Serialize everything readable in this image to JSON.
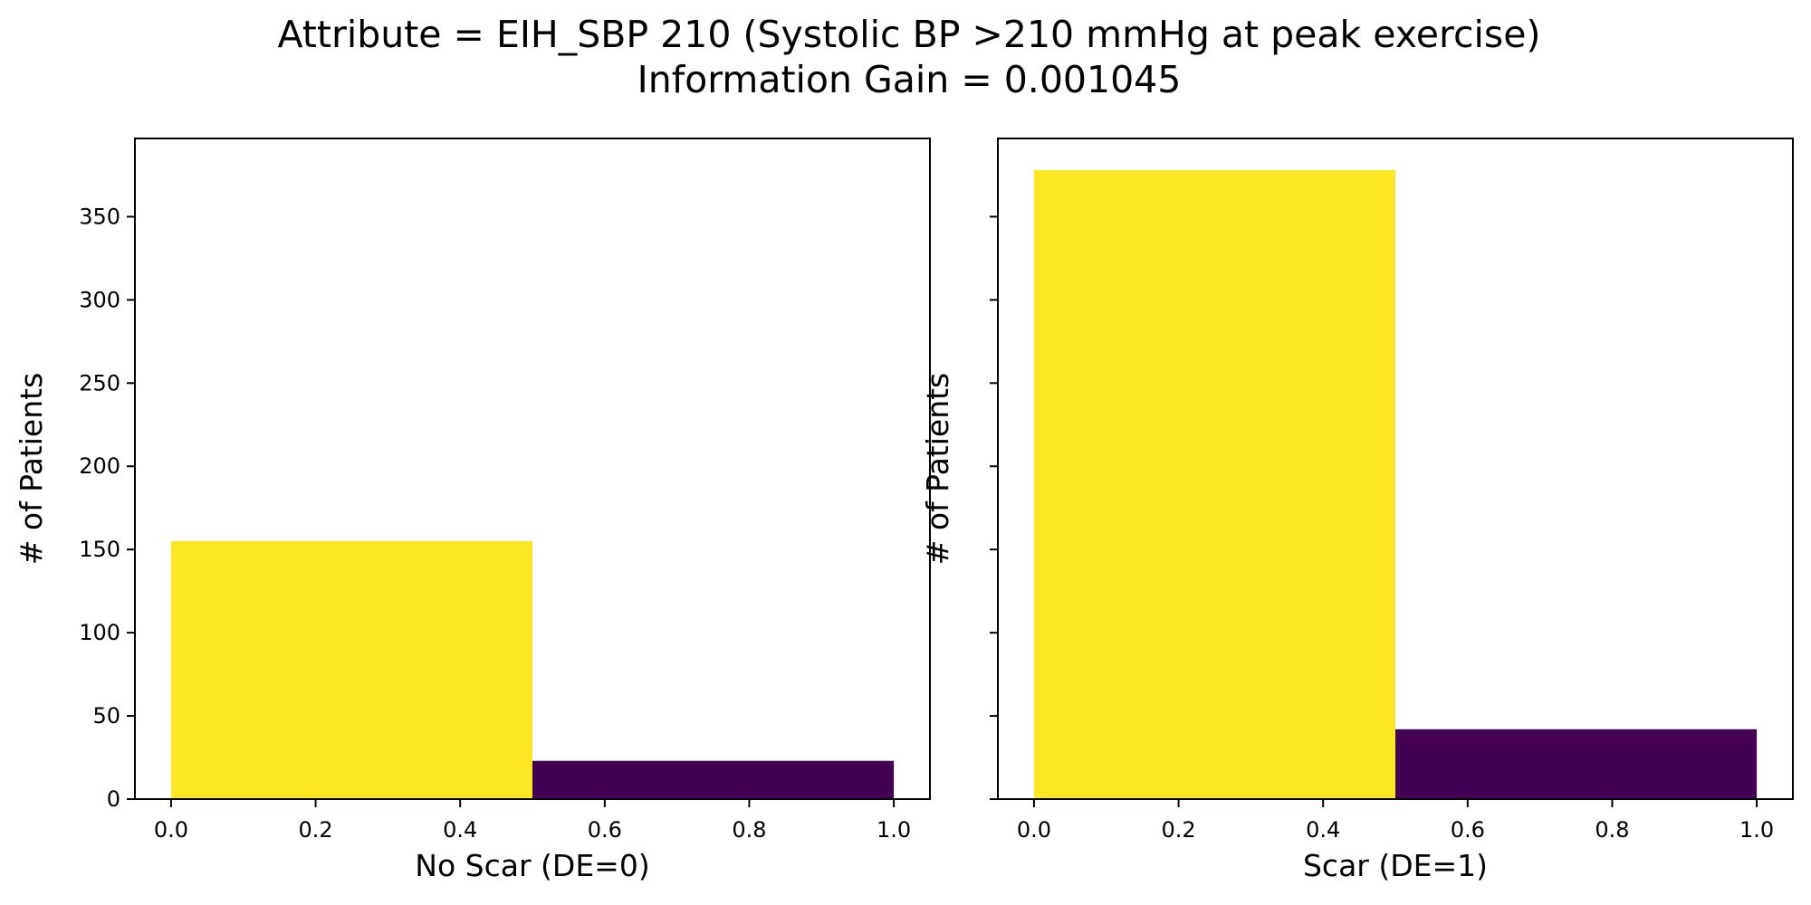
{
  "figure": {
    "title_line1": "Attribute = EIH_SBP 210 (Systolic BP >210 mmHg at peak exercise)",
    "title_line2": "Information Gain = 0.001045"
  },
  "chart_data": [
    {
      "type": "bar",
      "xlabel": "No Scar (DE=0)",
      "ylabel": "# of Patients",
      "xlim": [
        -0.05,
        1.05
      ],
      "ylim": [
        0,
        397
      ],
      "xticks": [
        "0.0",
        "0.2",
        "0.4",
        "0.6",
        "0.8",
        "1.0"
      ],
      "yticks": [
        "0",
        "50",
        "100",
        "150",
        "200",
        "250",
        "300",
        "350"
      ],
      "show_ytick_labels": true,
      "bars": [
        {
          "x0": 0.0,
          "x1": 0.5,
          "value": 155,
          "color": "#fde725"
        },
        {
          "x0": 0.5,
          "x1": 1.0,
          "value": 23,
          "color": "#440154"
        }
      ]
    },
    {
      "type": "bar",
      "xlabel": "Scar (DE=1)",
      "ylabel": "# of Patients",
      "xlim": [
        -0.05,
        1.05
      ],
      "ylim": [
        0,
        397
      ],
      "xticks": [
        "0.0",
        "0.2",
        "0.4",
        "0.6",
        "0.8",
        "1.0"
      ],
      "yticks": [
        "0",
        "50",
        "100",
        "150",
        "200",
        "250",
        "300",
        "350"
      ],
      "show_ytick_labels": false,
      "bars": [
        {
          "x0": 0.0,
          "x1": 0.5,
          "value": 378,
          "color": "#fde725"
        },
        {
          "x0": 0.5,
          "x1": 1.0,
          "value": 42,
          "color": "#440154"
        }
      ]
    }
  ]
}
